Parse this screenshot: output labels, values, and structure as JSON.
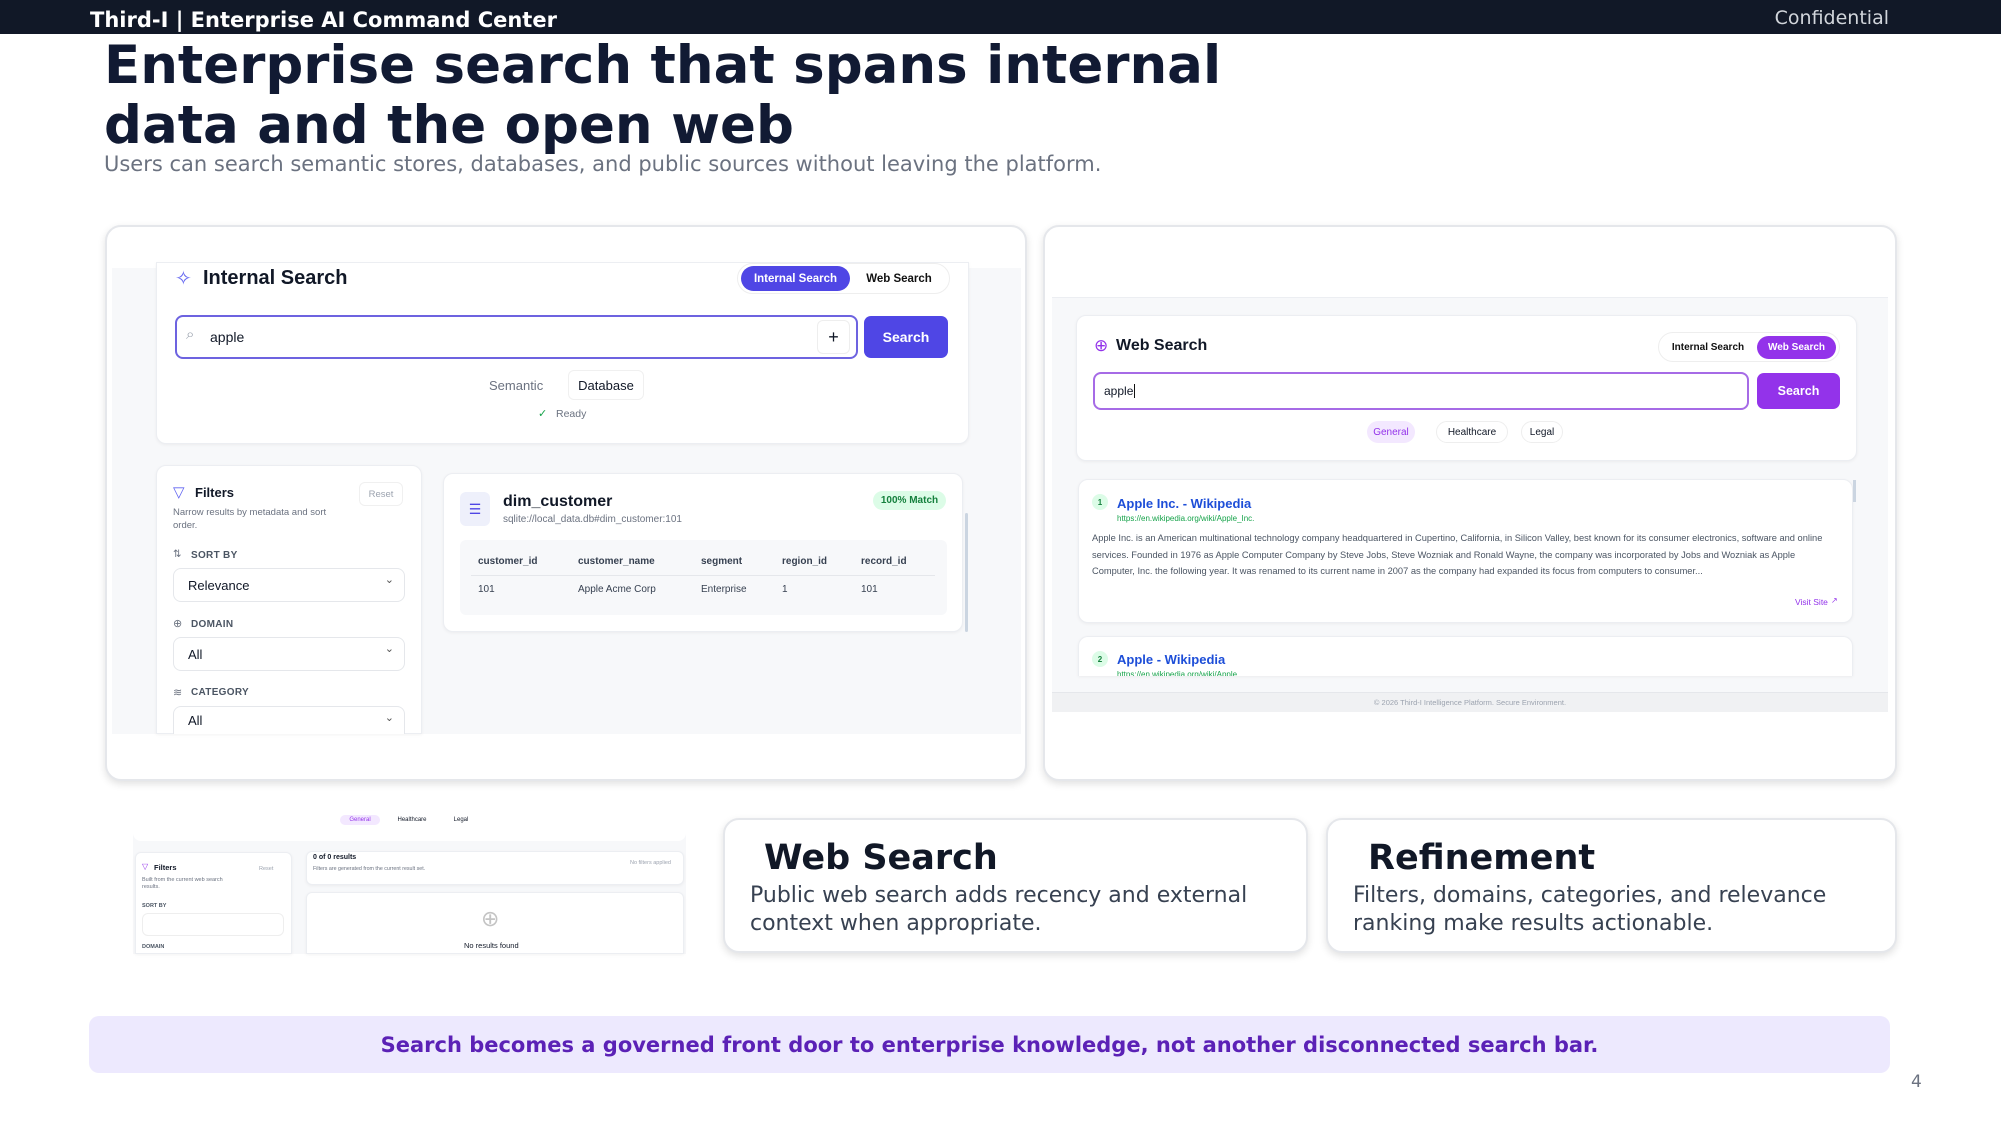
{
  "header": {
    "brand": "Third-I | Enterprise AI Command Center",
    "confidential": "Confidential"
  },
  "title": "Enterprise search that spans internal data and the open web",
  "subtitle": "Users can search semantic stores, databases, and public sources without leaving the platform.",
  "internal": {
    "heading": "Internal Search",
    "tab_internal": "Internal Search",
    "tab_web": "Web Search",
    "query": "apple",
    "search_label": "Search",
    "mode_semantic": "Semantic",
    "mode_database": "Database",
    "status": "Ready",
    "filters": {
      "title": "Filters",
      "reset": "Reset",
      "hint": "Narrow results by metadata and sort order.",
      "sort_label": "SORT BY",
      "sort_value": "Relevance",
      "domain_label": "DOMAIN",
      "domain_value": "All",
      "category_label": "CATEGORY",
      "category_value": "All"
    },
    "result": {
      "name": "dim_customer",
      "path": "sqlite://local_data.db#dim_customer:101",
      "match": "100% Match",
      "columns": [
        "customer_id",
        "customer_name",
        "segment",
        "region_id",
        "record_id"
      ],
      "row": [
        "101",
        "Apple Acme Corp",
        "Enterprise",
        "1",
        "101"
      ]
    }
  },
  "web": {
    "heading": "Web Search",
    "tab_internal": "Internal Search",
    "tab_web": "Web Search",
    "query": "apple",
    "search_label": "Search",
    "chips": [
      "General",
      "Healthcare",
      "Legal"
    ],
    "results": [
      {
        "rank": "1",
        "title": "Apple Inc. - Wikipedia",
        "url": "https://en.wikipedia.org/wiki/Apple_Inc.",
        "desc": "Apple Inc. is an American multinational technology company headquartered in Cupertino, California, in Silicon Valley, best known for its consumer electronics, software and online services. Founded in 1976 as Apple Computer Company by Steve Jobs, Steve Wozniak and Ronald Wayne, the company was incorporated by Jobs and Wozniak as Apple Computer, Inc. the following year. It was renamed to its current name in 2007 as the company had expanded its focus from computers to consumer...",
        "visit": "Visit Site"
      },
      {
        "rank": "2",
        "title": "Apple - Wikipedia",
        "url": "https://en.wikipedia.org/wiki/Apple"
      }
    ],
    "footer": "© 2026 Third-I Intelligence Platform. Secure Environment."
  },
  "snippet": {
    "chips": [
      "General",
      "Healthcare",
      "Legal"
    ],
    "filters_title": "Filters",
    "reset": "Reset",
    "hint": "Built from the current web search results.",
    "sort_label": "SORT BY",
    "domain_label": "DOMAIN",
    "count": "0 of 0 results",
    "count_hint": "Filters are generated from the current result set.",
    "no_filters": "No filters applied",
    "empty": "No results found"
  },
  "features": [
    {
      "title": "Web Search",
      "body": "Public web search adds recency and external context when appropriate."
    },
    {
      "title": "Refinement",
      "body": "Filters, domains, categories, and relevance ranking make results actionable."
    }
  ],
  "banner": "Search becomes a governed front door to enterprise knowledge, not another disconnected search bar.",
  "page_number": "4",
  "colors": {
    "internal_accent": "#4f46e5",
    "web_accent": "#9333ea",
    "banner_bg": "#ede9fe",
    "banner_text": "#5b21b6"
  }
}
